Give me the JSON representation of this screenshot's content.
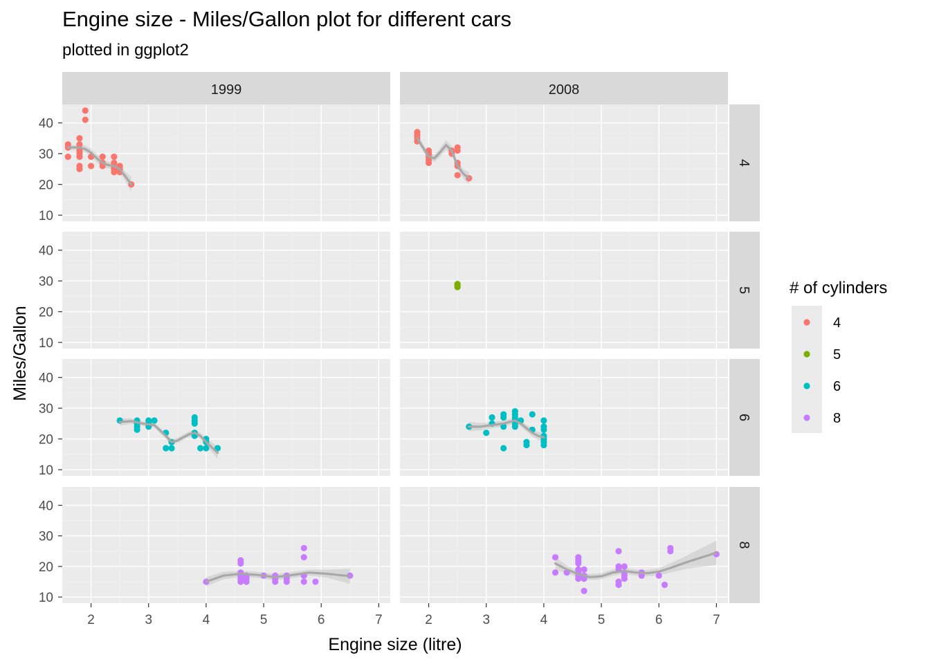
{
  "chart_data": {
    "type": "scatter",
    "title": "Engine size - Miles/Gallon plot for different cars",
    "subtitle": "plotted in ggplot2",
    "xlabel": "Engine size (litre)",
    "ylabel": "Miles/Gallon",
    "xlim": [
      1.5,
      7.2
    ],
    "ylim": [
      8,
      46
    ],
    "x_ticks": [
      2,
      3,
      4,
      5,
      6,
      7
    ],
    "y_ticks": [
      10,
      20,
      30,
      40
    ],
    "grid": true,
    "facet_cols": [
      "1999",
      "2008"
    ],
    "facet_rows": [
      "4",
      "5",
      "6",
      "8"
    ],
    "legend": {
      "title": "# of cylinders",
      "placement": "right",
      "items": [
        {
          "label": "4",
          "color": "#F8766D"
        },
        {
          "label": "5",
          "color": "#7CAE00"
        },
        {
          "label": "6",
          "color": "#00BFC4"
        },
        {
          "label": "8",
          "color": "#C77CFF"
        }
      ]
    },
    "panels": [
      {
        "year": "1999",
        "cyl": "4",
        "color": "#F8766D",
        "points": [
          [
            1.6,
            33
          ],
          [
            1.6,
            32
          ],
          [
            1.6,
            29
          ],
          [
            1.8,
            35
          ],
          [
            1.8,
            33
          ],
          [
            1.8,
            31
          ],
          [
            1.8,
            30
          ],
          [
            1.8,
            29
          ],
          [
            1.8,
            26
          ],
          [
            1.8,
            25
          ],
          [
            1.9,
            44
          ],
          [
            1.9,
            41
          ],
          [
            2.0,
            29
          ],
          [
            2.0,
            26
          ],
          [
            2.2,
            29
          ],
          [
            2.2,
            27
          ],
          [
            2.2,
            26
          ],
          [
            2.4,
            29
          ],
          [
            2.4,
            27
          ],
          [
            2.4,
            26
          ],
          [
            2.4,
            25
          ],
          [
            2.4,
            24
          ],
          [
            2.5,
            26
          ],
          [
            2.5,
            25
          ],
          [
            2.5,
            24
          ],
          [
            2.7,
            20
          ]
        ],
        "smooth": [
          [
            1.6,
            32
          ],
          [
            1.7,
            32
          ],
          [
            1.8,
            32
          ],
          [
            1.9,
            31.5
          ],
          [
            2.0,
            30.3
          ],
          [
            2.1,
            28.5
          ],
          [
            2.2,
            27
          ],
          [
            2.3,
            26.3
          ],
          [
            2.4,
            26
          ],
          [
            2.5,
            25
          ],
          [
            2.6,
            22.5
          ],
          [
            2.7,
            20
          ]
        ],
        "band": [
          0.8,
          0.8,
          0.9,
          1.1,
          1.3,
          1.3,
          1.2,
          1.1,
          1.0,
          1.1,
          1.6,
          2.4
        ]
      },
      {
        "year": "2008",
        "cyl": "4",
        "color": "#F8766D",
        "points": [
          [
            1.8,
            37
          ],
          [
            1.8,
            36
          ],
          [
            1.8,
            35
          ],
          [
            1.8,
            34
          ],
          [
            2.0,
            31
          ],
          [
            2.0,
            30
          ],
          [
            2.0,
            29
          ],
          [
            2.0,
            28
          ],
          [
            2.0,
            27
          ],
          [
            2.4,
            31
          ],
          [
            2.4,
            30
          ],
          [
            2.5,
            32
          ],
          [
            2.5,
            31
          ],
          [
            2.5,
            27
          ],
          [
            2.5,
            26
          ],
          [
            2.5,
            23
          ],
          [
            2.7,
            22
          ]
        ],
        "smooth": [
          [
            1.8,
            35
          ],
          [
            1.9,
            32
          ],
          [
            2.0,
            29
          ],
          [
            2.1,
            28.5
          ],
          [
            2.2,
            30.5
          ],
          [
            2.3,
            32.8
          ],
          [
            2.4,
            31
          ],
          [
            2.5,
            26
          ],
          [
            2.6,
            23.5
          ],
          [
            2.7,
            22
          ]
        ],
        "band": [
          1.0,
          1.2,
          1.1,
          1.2,
          1.4,
          1.6,
          1.4,
          1.2,
          1.5,
          2.0
        ]
      },
      {
        "year": "1999",
        "cyl": "5",
        "color": "#7CAE00",
        "points": []
      },
      {
        "year": "2008",
        "cyl": "5",
        "color": "#7CAE00",
        "points": [
          [
            2.5,
            29
          ],
          [
            2.5,
            28.5
          ],
          [
            2.5,
            28
          ]
        ]
      },
      {
        "year": "1999",
        "cyl": "6",
        "color": "#00BFC4",
        "points": [
          [
            2.5,
            26
          ],
          [
            2.8,
            26
          ],
          [
            2.8,
            25
          ],
          [
            2.8,
            24
          ],
          [
            2.8,
            23
          ],
          [
            3.0,
            26
          ],
          [
            3.0,
            25
          ],
          [
            3.0,
            24
          ],
          [
            3.1,
            26
          ],
          [
            3.3,
            22
          ],
          [
            3.3,
            17
          ],
          [
            3.4,
            19
          ],
          [
            3.4,
            17
          ],
          [
            3.8,
            27
          ],
          [
            3.8,
            26
          ],
          [
            3.8,
            25
          ],
          [
            3.8,
            22
          ],
          [
            3.8,
            21
          ],
          [
            3.9,
            17
          ],
          [
            4.0,
            20
          ],
          [
            4.0,
            19
          ],
          [
            4.0,
            17
          ],
          [
            4.2,
            17
          ]
        ],
        "smooth": [
          [
            2.5,
            25.5
          ],
          [
            2.7,
            25.8
          ],
          [
            2.9,
            25
          ],
          [
            3.1,
            24.5
          ],
          [
            3.3,
            21
          ],
          [
            3.4,
            19
          ],
          [
            3.5,
            19.5
          ],
          [
            3.7,
            21.5
          ],
          [
            3.8,
            22
          ],
          [
            3.9,
            21
          ],
          [
            4.0,
            19
          ],
          [
            4.2,
            15.5
          ]
        ],
        "band": [
          1.2,
          0.9,
          0.7,
          0.8,
          1.0,
          1.0,
          0.9,
          0.9,
          1.0,
          1.0,
          1.2,
          2.0
        ]
      },
      {
        "year": "2008",
        "cyl": "6",
        "color": "#00BFC4",
        "points": [
          [
            2.7,
            24
          ],
          [
            3.0,
            22
          ],
          [
            3.1,
            27
          ],
          [
            3.1,
            25
          ],
          [
            3.3,
            28
          ],
          [
            3.3,
            27
          ],
          [
            3.3,
            24
          ],
          [
            3.3,
            17
          ],
          [
            3.5,
            29
          ],
          [
            3.5,
            28
          ],
          [
            3.5,
            27
          ],
          [
            3.5,
            26
          ],
          [
            3.5,
            25
          ],
          [
            3.5,
            24
          ],
          [
            3.6,
            26
          ],
          [
            3.7,
            19
          ],
          [
            3.7,
            18
          ],
          [
            3.8,
            28
          ],
          [
            3.8,
            23
          ],
          [
            4.0,
            26
          ],
          [
            4.0,
            24
          ],
          [
            4.0,
            23
          ],
          [
            4.0,
            21
          ],
          [
            4.0,
            20
          ],
          [
            4.0,
            19
          ],
          [
            4.0,
            18
          ]
        ],
        "smooth": [
          [
            2.7,
            24
          ],
          [
            2.9,
            24
          ],
          [
            3.1,
            24.5
          ],
          [
            3.3,
            25
          ],
          [
            3.5,
            26
          ],
          [
            3.6,
            25
          ],
          [
            3.7,
            23.5
          ],
          [
            3.8,
            22
          ],
          [
            3.9,
            21
          ],
          [
            4.0,
            20.5
          ]
        ],
        "band": [
          1.5,
          1.2,
          1.0,
          1.0,
          1.0,
          1.0,
          1.1,
          1.2,
          1.3,
          1.5
        ]
      },
      {
        "year": "1999",
        "cyl": "8",
        "color": "#C77CFF",
        "points": [
          [
            4.0,
            15
          ],
          [
            4.6,
            22
          ],
          [
            4.6,
            21
          ],
          [
            4.6,
            18
          ],
          [
            4.6,
            17
          ],
          [
            4.6,
            16
          ],
          [
            4.6,
            15
          ],
          [
            4.7,
            17
          ],
          [
            4.7,
            16
          ],
          [
            4.7,
            15
          ],
          [
            5.0,
            17
          ],
          [
            5.2,
            17
          ],
          [
            5.2,
            16
          ],
          [
            5.2,
            15
          ],
          [
            5.4,
            17
          ],
          [
            5.4,
            16
          ],
          [
            5.4,
            15
          ],
          [
            5.7,
            26
          ],
          [
            5.7,
            23
          ],
          [
            5.7,
            17
          ],
          [
            5.7,
            15
          ],
          [
            5.9,
            15
          ],
          [
            6.5,
            17
          ]
        ],
        "smooth": [
          [
            4.0,
            15
          ],
          [
            4.3,
            17
          ],
          [
            4.6,
            17.6
          ],
          [
            4.9,
            17.2
          ],
          [
            5.2,
            16.5
          ],
          [
            5.5,
            17.2
          ],
          [
            5.8,
            18
          ],
          [
            6.1,
            17.6
          ],
          [
            6.5,
            16.8
          ]
        ],
        "band": [
          1.5,
          1.2,
          1.0,
          1.0,
          1.0,
          1.0,
          1.0,
          1.3,
          2.5
        ]
      },
      {
        "year": "2008",
        "cyl": "8",
        "color": "#C77CFF",
        "points": [
          [
            4.2,
            23
          ],
          [
            4.2,
            18
          ],
          [
            4.4,
            18
          ],
          [
            4.6,
            23
          ],
          [
            4.6,
            22
          ],
          [
            4.6,
            21
          ],
          [
            4.6,
            19
          ],
          [
            4.6,
            18
          ],
          [
            4.6,
            17
          ],
          [
            4.6,
            16
          ],
          [
            4.7,
            19
          ],
          [
            4.7,
            17
          ],
          [
            4.7,
            16
          ],
          [
            4.7,
            12
          ],
          [
            5.3,
            25
          ],
          [
            5.3,
            20
          ],
          [
            5.3,
            19
          ],
          [
            5.3,
            15
          ],
          [
            5.3,
            14
          ],
          [
            5.4,
            20
          ],
          [
            5.4,
            18
          ],
          [
            5.4,
            17
          ],
          [
            5.4,
            16
          ],
          [
            5.7,
            18
          ],
          [
            5.7,
            17
          ],
          [
            6.0,
            17
          ],
          [
            6.1,
            14
          ],
          [
            6.2,
            26
          ],
          [
            6.2,
            25
          ],
          [
            7.0,
            24
          ]
        ],
        "smooth": [
          [
            4.2,
            21
          ],
          [
            4.4,
            19
          ],
          [
            4.6,
            17.5
          ],
          [
            4.8,
            16.5
          ],
          [
            5.0,
            16.8
          ],
          [
            5.2,
            18
          ],
          [
            5.4,
            18.5
          ],
          [
            5.6,
            18
          ],
          [
            5.8,
            17.8
          ],
          [
            6.0,
            18.3
          ],
          [
            6.2,
            19.5
          ],
          [
            6.5,
            21.5
          ],
          [
            7.0,
            24.5
          ]
        ],
        "band": [
          2.0,
          1.3,
          1.0,
          1.0,
          1.0,
          1.0,
          1.0,
          1.0,
          1.0,
          1.2,
          1.5,
          2.2,
          4.0
        ]
      }
    ]
  }
}
